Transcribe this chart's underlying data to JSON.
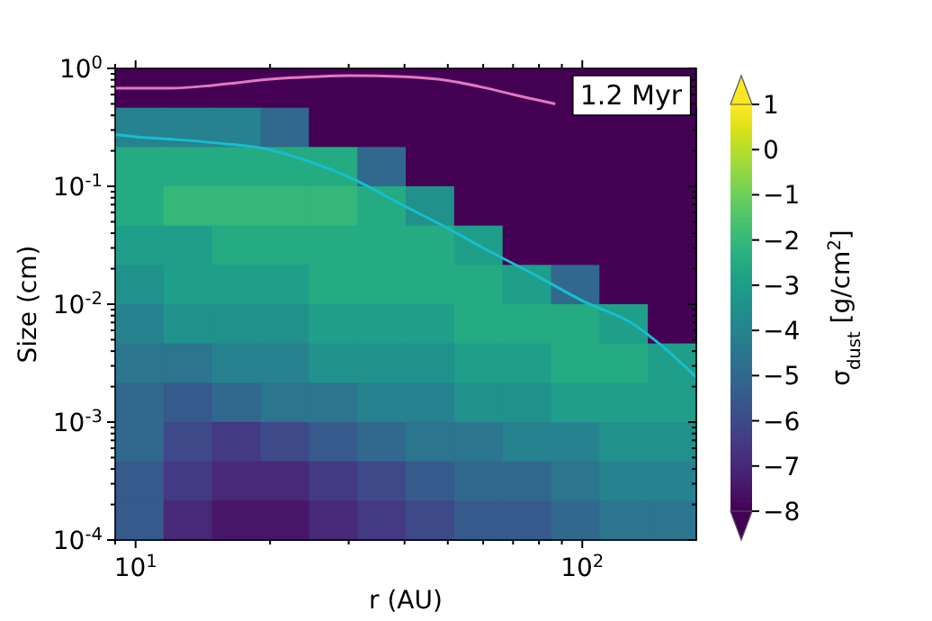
{
  "chart_data": {
    "type": "heatmap",
    "xlabel": "r (AU)",
    "ylabel": "Size (cm)",
    "clabel": "σ$_{dust}$ [g/cm$^{2}$]",
    "annotations": [
      "1.2 Myr"
    ],
    "log": "xy",
    "grid": false,
    "xlim": [
      9,
      180
    ],
    "ylim": [
      0.0001,
      1
    ],
    "xticks": [
      {
        "value": 9,
        "label": null
      },
      {
        "value": 10,
        "label": "10$^{1}$"
      },
      {
        "value": 20,
        "label": null
      },
      {
        "value": 30,
        "label": null
      },
      {
        "value": 40,
        "label": null
      },
      {
        "value": 50,
        "label": null
      },
      {
        "value": 60,
        "label": null
      },
      {
        "value": 70,
        "label": null
      },
      {
        "value": 80,
        "label": null
      },
      {
        "value": 90,
        "label": null
      },
      {
        "value": 100,
        "label": "10$^{2}$"
      }
    ],
    "yticks": [
      {
        "value": 0.0001,
        "label": "10$^{-4}$"
      },
      {
        "value": 0.0002,
        "label": null
      },
      {
        "value": 0.0003,
        "label": null
      },
      {
        "value": 0.0004,
        "label": null
      },
      {
        "value": 0.0005,
        "label": null
      },
      {
        "value": 0.0006,
        "label": null
      },
      {
        "value": 0.0007,
        "label": null
      },
      {
        "value": 0.0008,
        "label": null
      },
      {
        "value": 0.0009,
        "label": null
      },
      {
        "value": 0.001,
        "label": "10$^{-3}$"
      },
      {
        "value": 0.002,
        "label": null
      },
      {
        "value": 0.003,
        "label": null
      },
      {
        "value": 0.004,
        "label": null
      },
      {
        "value": 0.005,
        "label": null
      },
      {
        "value": 0.006,
        "label": null
      },
      {
        "value": 0.007,
        "label": null
      },
      {
        "value": 0.008,
        "label": null
      },
      {
        "value": 0.009,
        "label": null
      },
      {
        "value": 0.01,
        "label": "10$^{-2}$"
      },
      {
        "value": 0.02,
        "label": null
      },
      {
        "value": 0.03,
        "label": null
      },
      {
        "value": 0.04,
        "label": null
      },
      {
        "value": 0.05,
        "label": null
      },
      {
        "value": 0.06,
        "label": null
      },
      {
        "value": 0.07,
        "label": null
      },
      {
        "value": 0.08,
        "label": null
      },
      {
        "value": 0.09,
        "label": null
      },
      {
        "value": 0.1,
        "label": "10$^{-1}$"
      },
      {
        "value": 0.2,
        "label": null
      },
      {
        "value": 0.3,
        "label": null
      },
      {
        "value": 0.4,
        "label": null
      },
      {
        "value": 0.5,
        "label": null
      },
      {
        "value": 0.6,
        "label": null
      },
      {
        "value": 0.7,
        "label": null
      },
      {
        "value": 0.8,
        "label": null
      },
      {
        "value": 0.9,
        "label": null
      },
      {
        "value": 1,
        "label": "10$^{0}$"
      }
    ],
    "clim": [
      -8,
      1
    ],
    "cticks": [
      {
        "value": -8,
        "label": "−8"
      },
      {
        "value": -7,
        "label": "−7"
      },
      {
        "value": -6,
        "label": "−6"
      },
      {
        "value": -5,
        "label": "−5"
      },
      {
        "value": -4,
        "label": "−4"
      },
      {
        "value": -3,
        "label": "−3"
      },
      {
        "value": -2,
        "label": "−2"
      },
      {
        "value": -1,
        "label": "−1"
      },
      0,
      1
    ],
    "cells": [
      [
        -8,
        -8,
        -8,
        -8,
        -8,
        -8,
        -8,
        -8,
        -8,
        -8,
        null,
        null
      ],
      [
        -4,
        -4,
        -4,
        -5,
        -8,
        -8,
        -8,
        -8,
        -8,
        -8,
        -8,
        -8
      ],
      [
        -2.5,
        -2.5,
        -2.5,
        -2.5,
        -2.5,
        -5,
        -8,
        -8,
        -8,
        -8,
        -8,
        -8
      ],
      [
        -2.5,
        -2,
        -2,
        -2,
        -2,
        -2.5,
        -3.5,
        -8,
        -8,
        -8,
        -8,
        -8
      ],
      [
        -3,
        -3,
        -2.5,
        -2.5,
        -2.5,
        -2.5,
        -2.5,
        -3,
        -8,
        -8,
        -8,
        -8
      ],
      [
        -3.5,
        -3,
        -3,
        -3,
        -2.5,
        -2.5,
        -2.5,
        -2.5,
        -3,
        -5,
        -8,
        -8
      ],
      [
        -4,
        -3.5,
        -3.5,
        -3.5,
        -3,
        -3,
        -3,
        -2.5,
        -2.5,
        -2.5,
        -3,
        -8
      ],
      [
        -4.5,
        -4.5,
        -4,
        -4,
        -3.5,
        -3.5,
        -3.5,
        -3,
        -3,
        -2.5,
        -2.5,
        -3
      ],
      [
        -5,
        -5.5,
        -5,
        -4.5,
        -4.5,
        -4,
        -4,
        -3.5,
        -3.5,
        -3,
        -3,
        -3
      ],
      [
        -5,
        -6,
        -6.5,
        -6,
        -5.5,
        -5,
        -4.5,
        -4.5,
        -4,
        -4,
        -3.5,
        -3.5
      ],
      [
        -5.5,
        -6.5,
        -7,
        -7,
        -6.5,
        -6,
        -5.5,
        -5,
        -5,
        -4.5,
        -4,
        -4
      ],
      [
        -5.5,
        -7,
        -7.5,
        -7.5,
        -7,
        -6.5,
        -6,
        -5.5,
        -5.5,
        -5,
        -4.5,
        -4.5
      ]
    ],
    "series": [
      {
        "type": "line",
        "color": "#e377c2",
        "x": [
          9,
          12,
          15,
          20,
          25,
          30,
          40,
          50,
          60,
          70,
          87
        ],
        "values": [
          0.68,
          0.68,
          0.72,
          0.81,
          0.85,
          0.87,
          0.85,
          0.79,
          0.69,
          0.6,
          0.5
        ]
      },
      {
        "type": "line",
        "color": "#17becf",
        "x": [
          9,
          10,
          12,
          15,
          20,
          25,
          30,
          40,
          50,
          60,
          80,
          100,
          130,
          150,
          180
        ],
        "values": [
          0.275,
          0.263,
          0.251,
          0.234,
          0.204,
          0.158,
          0.12,
          0.068,
          0.044,
          0.03,
          0.017,
          0.0107,
          0.0068,
          0.0045,
          0.0024
        ]
      }
    ]
  }
}
